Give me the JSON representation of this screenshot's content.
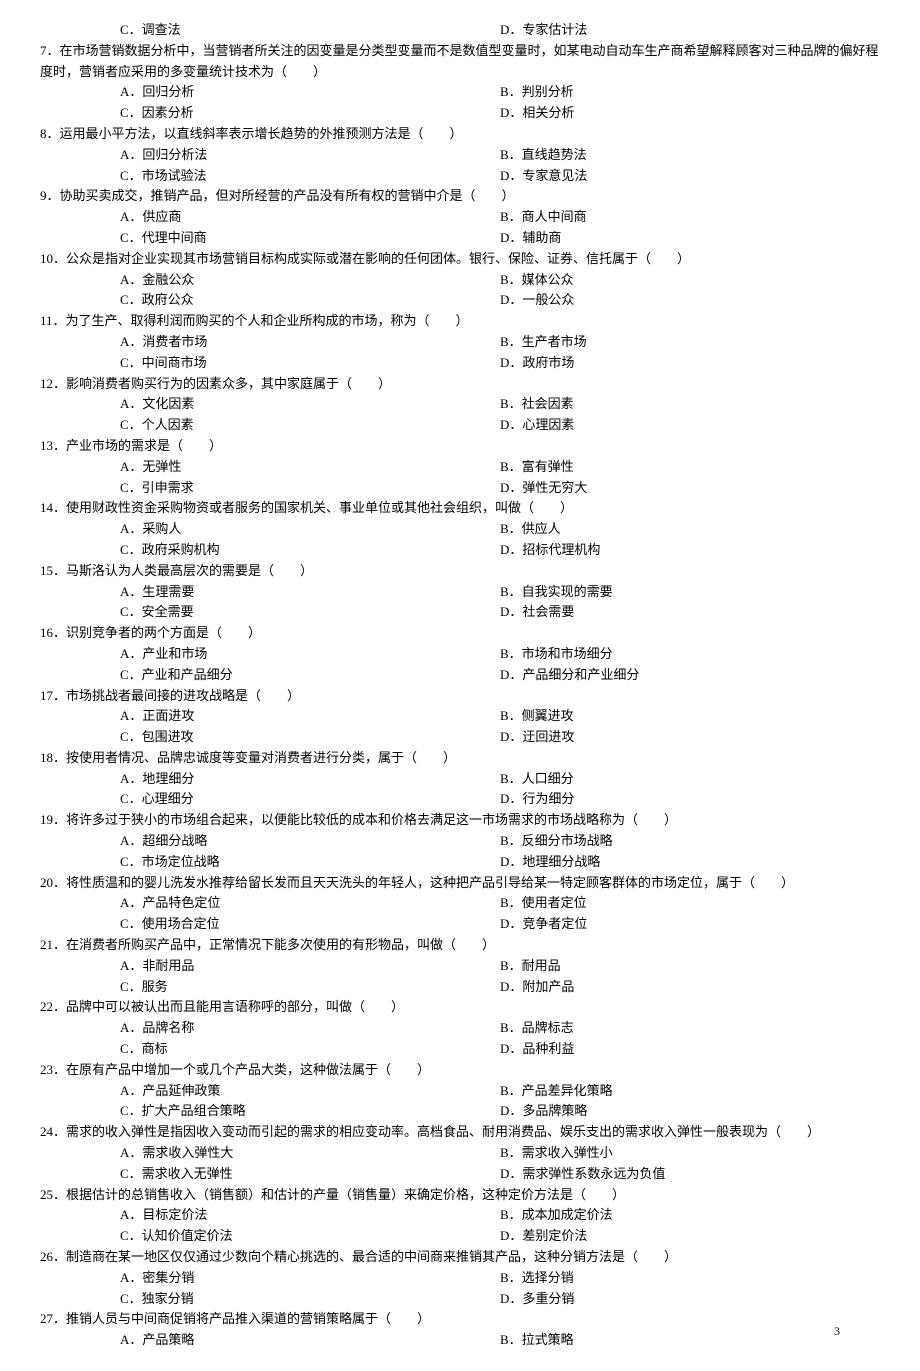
{
  "page_number": "3",
  "orphan_options": {
    "c": "C．调查法",
    "d": "D．专家估计法"
  },
  "questions": [
    {
      "num": "7",
      "text": "．在市场营销数据分析中，当营销者所关注的因变量是分类型变量而不是数值型变量时，如某电动自动车生产商希望解释顾客对三种品牌的偏好程度时，营销者应采用的多变量统计技术为（　　）",
      "a": "A．回归分析",
      "b": "B．判别分析",
      "c": "C．因素分析",
      "d": "D．相关分析"
    },
    {
      "num": "8",
      "text": "．运用最小平方法，以直线斜率表示增长趋势的外推预测方法是（　　）",
      "a": "A．回归分析法",
      "b": "B．直线趋势法",
      "c": "C．市场试验法",
      "d": "D．专家意见法"
    },
    {
      "num": "9",
      "text": "．协助买卖成交，推销产品，但对所经营的产品没有所有权的营销中介是（　　）",
      "a": "A．供应商",
      "b": "B．商人中间商",
      "c": "C．代理中间商",
      "d": "D．辅助商"
    },
    {
      "num": "10",
      "text": "．公众是指对企业实现其市场营销目标构成实际或潜在影响的任何团体。银行、保险、证券、信托属于（　　）",
      "a": "A．金融公众",
      "b": "B．媒体公众",
      "c": "C．政府公众",
      "d": "D．一般公众"
    },
    {
      "num": "11",
      "text": "．为了生产、取得利润而购买的个人和企业所构成的市场，称为（　　）",
      "a": "A．消费者市场",
      "b": "B．生产者市场",
      "c": "C．中间商市场",
      "d": "D．政府市场"
    },
    {
      "num": "12",
      "text": "．影响消费者购买行为的因素众多，其中家庭属于（　　）",
      "a": "A．文化因素",
      "b": "B．社会因素",
      "c": "C．个人因素",
      "d": "D．心理因素"
    },
    {
      "num": "13",
      "text": "．产业市场的需求是（　　）",
      "a": "A．无弹性",
      "b": "B．富有弹性",
      "c": "C．引申需求",
      "d": "D．弹性无穷大"
    },
    {
      "num": "14",
      "text": "．使用财政性资金采购物资或者服务的国家机关、事业单位或其他社会组织，叫做（　　）",
      "a": "A．采购人",
      "b": "B．供应人",
      "c": "C．政府采购机构",
      "d": "D．招标代理机构"
    },
    {
      "num": "15",
      "text": "．马斯洛认为人类最高层次的需要是（　　）",
      "a": "A．生理需要",
      "b": "B．自我实现的需要",
      "c": "C．安全需要",
      "d": "D．社会需要"
    },
    {
      "num": "16",
      "text": "．识别竞争者的两个方面是（　　）",
      "a": "A．产业和市场",
      "b": "B．市场和市场细分",
      "c": "C．产业和产品细分",
      "d": "D．产品细分和产业细分"
    },
    {
      "num": "17",
      "text": "．市场挑战者最间接的进攻战略是（　　）",
      "a": "A．正面进攻",
      "b": "B．侧翼进攻",
      "c": "C．包围进攻",
      "d": "D．迂回进攻"
    },
    {
      "num": "18",
      "text": "．按使用者情况、品牌忠诚度等变量对消费者进行分类，属于（　　）",
      "a": "A．地理细分",
      "b": "B．人口细分",
      "c": "C．心理细分",
      "d": "D．行为细分"
    },
    {
      "num": "19",
      "text": "．将许多过于狭小的市场组合起来，以便能比较低的成本和价格去满足这一市场需求的市场战略称为（　　）",
      "a": "A．超细分战略",
      "b": "B．反细分市场战略",
      "c": "C．市场定位战略",
      "d": "D．地理细分战略"
    },
    {
      "num": "20",
      "text": "．将性质温和的婴儿洗发水推荐给留长发而且天天洗头的年轻人，这种把产品引导给某一特定顾客群体的市场定位，属于（　　）",
      "a": "A．产品特色定位",
      "b": "B．使用者定位",
      "c": "C．使用场合定位",
      "d": "D．竞争者定位"
    },
    {
      "num": "21",
      "text": "．在消费者所购买产品中，正常情况下能多次使用的有形物品，叫做（　　）",
      "a": "A．非耐用品",
      "b": "B．耐用品",
      "c": "C．服务",
      "d": "D．附加产品"
    },
    {
      "num": "22",
      "text": "．品牌中可以被认出而且能用言语称呼的部分，叫做（　　）",
      "a": "A．品牌名称",
      "b": "B．品牌标志",
      "c": "C．商标",
      "d": "D．品种利益"
    },
    {
      "num": "23",
      "text": "．在原有产品中增加一个或几个产品大类，这种做法属于（　　）",
      "a": "A．产品延伸政策",
      "b": "B．产品差异化策略",
      "c": "C．扩大产品组合策略",
      "d": "D．多品牌策略"
    },
    {
      "num": "24",
      "text": "．需求的收入弹性是指因收入变动而引起的需求的相应变动率。高档食品、耐用消费品、娱乐支出的需求收入弹性一般表现为（　　）",
      "a": "A．需求收入弹性大",
      "b": "B．需求收入弹性小",
      "c": "C．需求收入无弹性",
      "d": "D．需求弹性系数永远为负值"
    },
    {
      "num": "25",
      "text": "．根据估计的总销售收入（销售额）和估计的产量（销售量）来确定价格，这种定价方法是（　　）",
      "a": "A．目标定价法",
      "b": "B．成本加成定价法",
      "c": "C．认知价值定价法",
      "d": "D．差别定价法"
    },
    {
      "num": "26",
      "text": "．制造商在某一地区仅仅通过少数向个精心挑选的、最合适的中间商来推销其产品，这种分销方法是（　　）",
      "a": "A．密集分销",
      "b": "B．选择分销",
      "c": "C．独家分销",
      "d": "D．多重分销"
    },
    {
      "num": "27",
      "text": "．推销人员与中间商促销将产品推入渠道的营销策略属于（　　）",
      "a": "A．产品策略",
      "b": "B．拉式策略",
      "c": "",
      "d": ""
    }
  ]
}
